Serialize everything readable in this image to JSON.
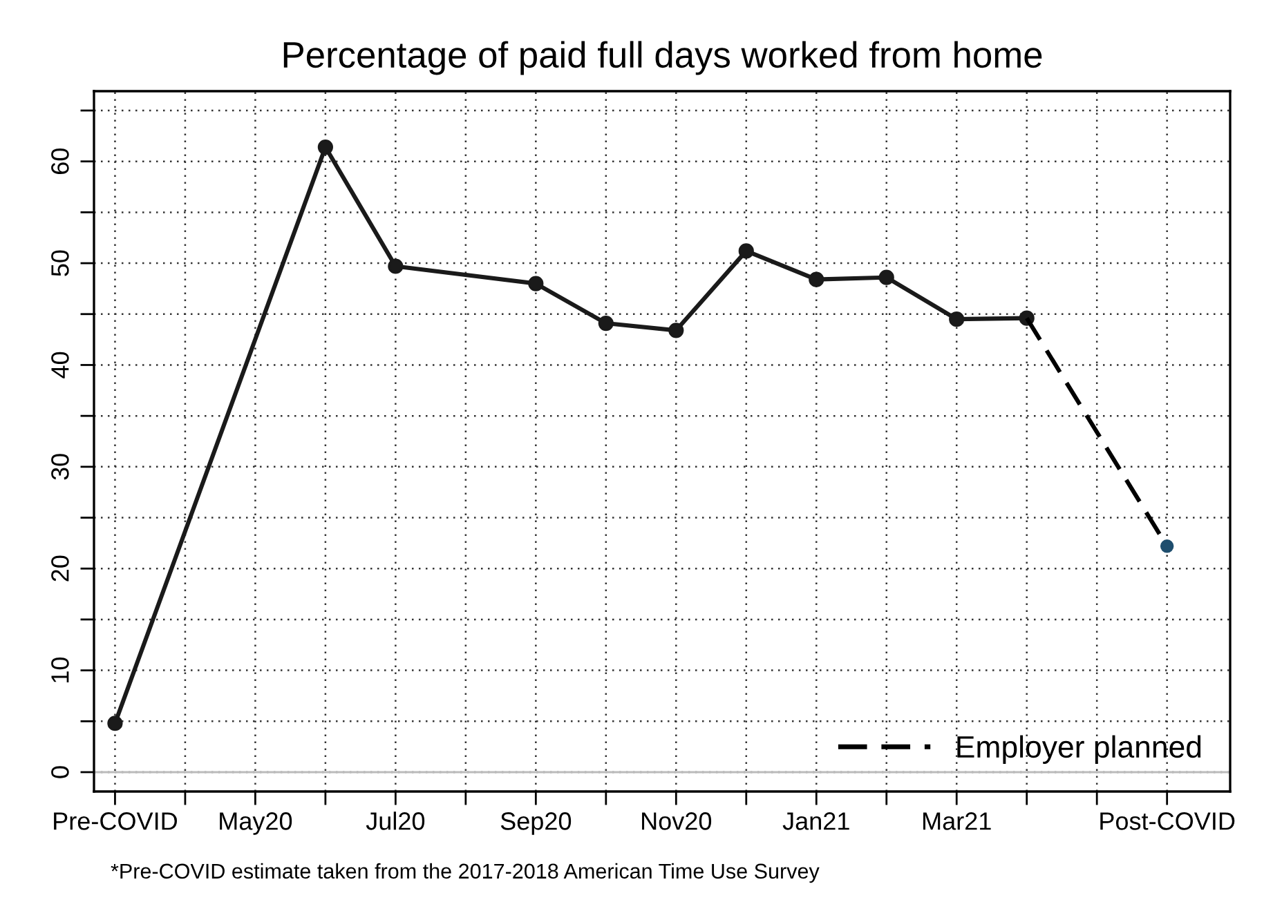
{
  "chart_data": {
    "type": "line",
    "title": "Percentage of paid full days worked from home",
    "categories": [
      "Pre-COVID",
      null,
      "May20",
      null,
      "Jul20",
      null,
      "Sep20",
      null,
      "Nov20",
      null,
      "Jan21",
      null,
      "Mar21",
      null,
      null,
      "Post-COVID"
    ],
    "series": [
      {
        "color": "#1a1a1a",
        "values": [
          4.8,
          null,
          null,
          61.4,
          49.7,
          null,
          48.0,
          44.1,
          43.4,
          51.2,
          48.4,
          48.6,
          44.5,
          44.6,
          null,
          null
        ],
        "marker": "circle",
        "line_style": "solid"
      },
      {
        "name": "Employer planned",
        "color": "#000000",
        "values": [
          null,
          null,
          null,
          null,
          null,
          null,
          null,
          null,
          null,
          null,
          null,
          null,
          null,
          44.6,
          null,
          22.2
        ],
        "marker": "none",
        "line_style": "dashed"
      },
      {
        "type": "scatter",
        "color": "#1f4e6e",
        "values": [
          null,
          null,
          null,
          null,
          null,
          null,
          null,
          null,
          null,
          null,
          null,
          null,
          null,
          null,
          null,
          22.2
        ],
        "marker": "circle"
      }
    ],
    "ylim": [
      -1.9,
      66.9
    ],
    "yticks": [
      0,
      {
        "value": 5,
        "label": null
      },
      10,
      {
        "value": 15,
        "label": null
      },
      20,
      {
        "value": 25,
        "label": null
      },
      30,
      {
        "value": 35,
        "label": null
      },
      40,
      {
        "value": 45,
        "label": null
      },
      50,
      {
        "value": 55,
        "label": null
      },
      60,
      {
        "value": 65,
        "label": null
      }
    ],
    "ref_lines": [
      {
        "axis": "y",
        "value": 0,
        "label": null,
        "color": "#bbbbbb",
        "line_style": "solid"
      }
    ],
    "grid": true,
    "legend": "bottom right",
    "annotations": [
      "*Pre-COVID estimate taken from the 2017-2018 American Time Use Survey"
    ]
  }
}
